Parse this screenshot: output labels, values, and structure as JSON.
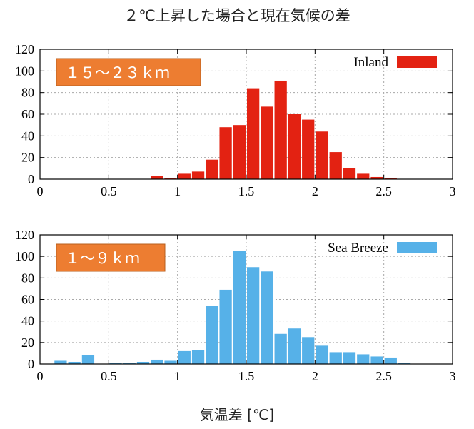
{
  "title": "２℃上昇した場合と現在気候の差",
  "xlabel": "気温差 [℃]",
  "chart_data": [
    {
      "type": "bar",
      "series_name": "Inland",
      "range_label": "１５〜２３ｋｍ",
      "color": "#e32212",
      "xlim": [
        0,
        3
      ],
      "ylim": [
        0,
        120
      ],
      "x_ticks": [
        0,
        0.5,
        1,
        1.5,
        2,
        2.5,
        3
      ],
      "x_tick_labels": [
        "0",
        "0.5",
        "1",
        "1.5",
        "2",
        "2.5",
        "3"
      ],
      "y_ticks": [
        0,
        20,
        40,
        60,
        80,
        100,
        120
      ],
      "y_tick_labels": [
        "0",
        "20",
        "40",
        "60",
        "80",
        "100",
        "120"
      ],
      "bin_width": 0.1,
      "grid": true,
      "legend": "top-right",
      "x": [
        0.85,
        0.95,
        1.05,
        1.15,
        1.25,
        1.35,
        1.45,
        1.55,
        1.65,
        1.75,
        1.85,
        1.95,
        2.05,
        2.15,
        2.25,
        2.35,
        2.45,
        2.55
      ],
      "values": [
        3,
        1,
        5,
        7,
        18,
        48,
        50,
        84,
        67,
        91,
        60,
        55,
        44,
        25,
        10,
        5,
        2,
        1
      ]
    },
    {
      "type": "bar",
      "series_name": "Sea Breeze",
      "range_label": "１〜９ｋｍ",
      "color": "#56b1e8",
      "xlim": [
        0,
        3
      ],
      "ylim": [
        0,
        120
      ],
      "x_ticks": [
        0,
        0.5,
        1,
        1.5,
        2,
        2.5,
        3
      ],
      "x_tick_labels": [
        "0",
        "0.5",
        "1",
        "1.5",
        "2",
        "2.5",
        "3"
      ],
      "y_ticks": [
        0,
        20,
        40,
        60,
        80,
        100,
        120
      ],
      "y_tick_labels": [
        "0",
        "20",
        "40",
        "60",
        "80",
        "100",
        "120"
      ],
      "bin_width": 0.1,
      "grid": true,
      "legend": "top-right",
      "x": [
        0.15,
        0.25,
        0.35,
        0.55,
        0.65,
        0.75,
        0.85,
        0.95,
        1.05,
        1.15,
        1.25,
        1.35,
        1.45,
        1.55,
        1.65,
        1.75,
        1.85,
        1.95,
        2.05,
        2.15,
        2.25,
        2.35,
        2.45,
        2.55,
        2.65
      ],
      "values": [
        3,
        2,
        8,
        1,
        1,
        2,
        4,
        3,
        12,
        13,
        54,
        69,
        105,
        90,
        86,
        28,
        33,
        25,
        17,
        11,
        11,
        9,
        7,
        6,
        1
      ]
    }
  ]
}
